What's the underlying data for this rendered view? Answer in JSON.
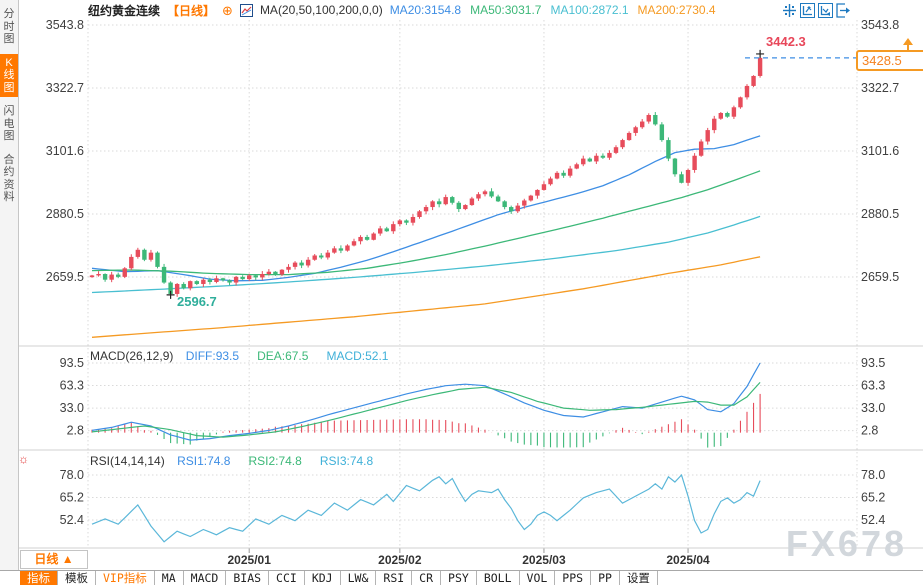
{
  "colors": {
    "accent": "#ff7800",
    "candle_up": "#e74c5b",
    "candle_down": "#3cb878",
    "ma20": "#3e8ee4",
    "ma50": "#3cb878",
    "ma100": "#49bfd1",
    "ma200": "#f59a23",
    "rsi_line": "#5bb7d9",
    "grid": "#dadada",
    "axis_text": "#404040",
    "dashed_price_line": "#3e8ee4",
    "toolbar_icon": "#1f7ac0"
  },
  "icons": {
    "sun_glyph": "☼",
    "add_glyph": "⊕",
    "period_arrow": "▲"
  },
  "sidebar": {
    "items": [
      {
        "label": "分时图",
        "active": false
      },
      {
        "label": "K线图",
        "active": true
      },
      {
        "label": "闪电图",
        "active": false
      },
      {
        "label": "合约资料",
        "active": false
      }
    ]
  },
  "header": {
    "symbol": "纽约黄金连续",
    "period_tag": "【日线】",
    "add_icon_glyph": "⊕",
    "ma_formula": "MA(20,50,100,200,0,0)",
    "ma_values": [
      {
        "label": "MA20:3154.8",
        "color": "#3e8ee4"
      },
      {
        "label": "MA50:3031.7",
        "color": "#3cb878"
      },
      {
        "label": "MA100:2872.1",
        "color": "#49bfd1"
      },
      {
        "label": "MA200:2730.4",
        "color": "#f59a23"
      }
    ]
  },
  "footer": {
    "period_label": "日线 ▲",
    "watermark": "FX678",
    "tabs": [
      {
        "label": "指标",
        "state": "selected"
      },
      {
        "label": "模板",
        "state": "normal"
      },
      {
        "label": "VIP指标",
        "state": "accent"
      },
      {
        "label": "MA",
        "state": "normal"
      },
      {
        "label": "MACD",
        "state": "normal"
      },
      {
        "label": "BIAS",
        "state": "normal"
      },
      {
        "label": "CCI",
        "state": "normal"
      },
      {
        "label": "KDJ",
        "state": "normal"
      },
      {
        "label": "LW&",
        "state": "normal"
      },
      {
        "label": "RSI",
        "state": "normal"
      },
      {
        "label": "CR",
        "state": "normal"
      },
      {
        "label": "PSY",
        "state": "normal"
      },
      {
        "label": "BOLL",
        "state": "normal"
      },
      {
        "label": "VOL",
        "state": "normal"
      },
      {
        "label": "PPS",
        "state": "normal"
      },
      {
        "label": "PP",
        "state": "normal"
      },
      {
        "label": "设置",
        "state": "normal"
      }
    ]
  },
  "chart_data": {
    "type": "candlestick",
    "title": "纽约黄金连续 日线",
    "x_axis": {
      "labels": [
        "2025/01",
        "2025/02",
        "2025/03",
        "2025/04"
      ],
      "tick_indices": [
        24,
        47,
        69,
        91
      ]
    },
    "main": {
      "y_ticks": [
        3543.8,
        3322.7,
        3101.6,
        2880.5,
        2659.5
      ],
      "closes": [
        2665,
        2670,
        2650,
        2668,
        2660,
        2690,
        2730,
        2755,
        2720,
        2745,
        2695,
        2640,
        2600,
        2635,
        2620,
        2645,
        2635,
        2650,
        2642,
        2655,
        2648,
        2640,
        2660,
        2652,
        2665,
        2658,
        2670,
        2678,
        2668,
        2685,
        2695,
        2710,
        2700,
        2720,
        2735,
        2728,
        2745,
        2760,
        2752,
        2770,
        2785,
        2800,
        2790,
        2812,
        2830,
        2820,
        2845,
        2858,
        2850,
        2870,
        2890,
        2905,
        2925,
        2915,
        2940,
        2920,
        2898,
        2912,
        2935,
        2950,
        2960,
        2942,
        2925,
        2905,
        2890,
        2910,
        2928,
        2945,
        2965,
        2985,
        3005,
        3025,
        3015,
        3040,
        3055,
        3075,
        3065,
        3085,
        3078,
        3095,
        3115,
        3140,
        3165,
        3185,
        3205,
        3228,
        3195,
        3140,
        3075,
        3020,
        2990,
        3035,
        3085,
        3135,
        3175,
        3215,
        3235,
        3222,
        3255,
        3290,
        3330,
        3365,
        3428.5
      ],
      "key_points": {
        "high_index": 102,
        "high_value": "3442.3",
        "low_index": 12,
        "low_value": "2596.7",
        "last_price": "3428.5"
      },
      "ma_series": [
        {
          "name": "MA20",
          "color": "#3e8ee4",
          "points": [
            [
              0,
              2690
            ],
            [
              5,
              2678
            ],
            [
              10,
              2682
            ],
            [
              14,
              2668
            ],
            [
              18,
              2652
            ],
            [
              22,
              2646
            ],
            [
              26,
              2648
            ],
            [
              30,
              2658
            ],
            [
              34,
              2672
            ],
            [
              38,
              2694
            ],
            [
              42,
              2718
            ],
            [
              46,
              2748
            ],
            [
              50,
              2780
            ],
            [
              54,
              2812
            ],
            [
              58,
              2845
            ],
            [
              62,
              2878
            ],
            [
              66,
              2904
            ],
            [
              70,
              2928
            ],
            [
              74,
              2952
            ],
            [
              78,
              2980
            ],
            [
              82,
              3018
            ],
            [
              86,
              3065
            ],
            [
              89,
              3096
            ],
            [
              92,
              3108
            ],
            [
              95,
              3110
            ],
            [
              98,
              3124
            ],
            [
              100,
              3140
            ],
            [
              102,
              3154.8
            ]
          ]
        },
        {
          "name": "MA50",
          "color": "#3cb878",
          "points": [
            [
              0,
              2682
            ],
            [
              6,
              2684
            ],
            [
              12,
              2680
            ],
            [
              18,
              2672
            ],
            [
              24,
              2668
            ],
            [
              30,
              2668
            ],
            [
              36,
              2676
            ],
            [
              42,
              2690
            ],
            [
              48,
              2712
            ],
            [
              54,
              2738
            ],
            [
              60,
              2768
            ],
            [
              66,
              2800
            ],
            [
              72,
              2832
            ],
            [
              78,
              2866
            ],
            [
              84,
              2902
            ],
            [
              90,
              2938
            ],
            [
              94,
              2966
            ],
            [
              98,
              2998
            ],
            [
              102,
              3031.7
            ]
          ]
        },
        {
          "name": "MA100",
          "color": "#49bfd1",
          "points": [
            [
              0,
              2605
            ],
            [
              10,
              2616
            ],
            [
              20,
              2628
            ],
            [
              30,
              2642
            ],
            [
              40,
              2658
            ],
            [
              50,
              2677
            ],
            [
              60,
              2698
            ],
            [
              70,
              2723
            ],
            [
              80,
              2752
            ],
            [
              88,
              2782
            ],
            [
              94,
              2814
            ],
            [
              98,
              2842
            ],
            [
              102,
              2872.1
            ]
          ]
        },
        {
          "name": "MA200",
          "color": "#f59a23",
          "points": [
            [
              0,
              2448
            ],
            [
              20,
              2482
            ],
            [
              40,
              2520
            ],
            [
              60,
              2565
            ],
            [
              75,
              2618
            ],
            [
              88,
              2672
            ],
            [
              96,
              2702
            ],
            [
              102,
              2730.4
            ]
          ]
        }
      ]
    },
    "macd": {
      "label": "MACD(26,12,9)",
      "y_ticks": [
        93.5,
        63.3,
        33.0,
        2.8
      ],
      "values": [
        {
          "label": "DIFF:93.5",
          "color": "#3e8ee4"
        },
        {
          "label": "DEA:67.5",
          "color": "#3cb878"
        },
        {
          "label": "MACD:52.1",
          "color": "#3fb0d8"
        }
      ],
      "diff_points": [
        [
          0,
          3
        ],
        [
          3,
          7
        ],
        [
          6,
          14
        ],
        [
          9,
          9
        ],
        [
          12,
          -3
        ],
        [
          15,
          -10
        ],
        [
          18,
          -8
        ],
        [
          21,
          -4
        ],
        [
          24,
          -1
        ],
        [
          27,
          3
        ],
        [
          30,
          9
        ],
        [
          33,
          16
        ],
        [
          36,
          24
        ],
        [
          39,
          31
        ],
        [
          42,
          38
        ],
        [
          45,
          45
        ],
        [
          48,
          52
        ],
        [
          51,
          58
        ],
        [
          54,
          63
        ],
        [
          57,
          65
        ],
        [
          60,
          63
        ],
        [
          63,
          52
        ],
        [
          66,
          40
        ],
        [
          69,
          30
        ],
        [
          72,
          23
        ],
        [
          75,
          21
        ],
        [
          78,
          28
        ],
        [
          81,
          35
        ],
        [
          84,
          33
        ],
        [
          87,
          41
        ],
        [
          90,
          49
        ],
        [
          92,
          44
        ],
        [
          94,
          31
        ],
        [
          96,
          28
        ],
        [
          98,
          39
        ],
        [
          100,
          62
        ],
        [
          102,
          93.5
        ]
      ],
      "dea_points": [
        [
          0,
          1
        ],
        [
          4,
          5
        ],
        [
          8,
          9
        ],
        [
          12,
          4
        ],
        [
          16,
          -4
        ],
        [
          20,
          -6
        ],
        [
          24,
          -3
        ],
        [
          28,
          1
        ],
        [
          32,
          8
        ],
        [
          36,
          16
        ],
        [
          40,
          25
        ],
        [
          44,
          34
        ],
        [
          48,
          43
        ],
        [
          52,
          51
        ],
        [
          56,
          58
        ],
        [
          60,
          61
        ],
        [
          64,
          54
        ],
        [
          68,
          42
        ],
        [
          72,
          33
        ],
        [
          76,
          30
        ],
        [
          80,
          31
        ],
        [
          84,
          34
        ],
        [
          88,
          38
        ],
        [
          92,
          42
        ],
        [
          94,
          41
        ],
        [
          96,
          37
        ],
        [
          98,
          37
        ],
        [
          100,
          48
        ],
        [
          102,
          67.5
        ]
      ]
    },
    "rsi": {
      "label": "RSI(14,14,14)",
      "y_ticks": [
        78.0,
        65.2,
        52.4
      ],
      "values": [
        {
          "label": "RSI1:74.8",
          "color": "#3e8ee4"
        },
        {
          "label": "RSI2:74.8",
          "color": "#3cb878"
        },
        {
          "label": "RSI3:74.8",
          "color": "#3fb0d8"
        }
      ],
      "points": [
        [
          0,
          50
        ],
        [
          2,
          53
        ],
        [
          4,
          50
        ],
        [
          7,
          61
        ],
        [
          9,
          49
        ],
        [
          11,
          40
        ],
        [
          13,
          46
        ],
        [
          15,
          43
        ],
        [
          17,
          47
        ],
        [
          19,
          44
        ],
        [
          21,
          48
        ],
        [
          23,
          46
        ],
        [
          25,
          53
        ],
        [
          27,
          50
        ],
        [
          29,
          55
        ],
        [
          31,
          52
        ],
        [
          33,
          58
        ],
        [
          35,
          55
        ],
        [
          37,
          62
        ],
        [
          39,
          58
        ],
        [
          41,
          64
        ],
        [
          43,
          61
        ],
        [
          45,
          67
        ],
        [
          46,
          63
        ],
        [
          48,
          72
        ],
        [
          50,
          69
        ],
        [
          52,
          75
        ],
        [
          53,
          77
        ],
        [
          54,
          73
        ],
        [
          55,
          76
        ],
        [
          56,
          69
        ],
        [
          57,
          63
        ],
        [
          58,
          67
        ],
        [
          59,
          69
        ],
        [
          61,
          68
        ],
        [
          62,
          70
        ],
        [
          63,
          64
        ],
        [
          64,
          59
        ],
        [
          65,
          52
        ],
        [
          66,
          47
        ],
        [
          67,
          50
        ],
        [
          68,
          55
        ],
        [
          69,
          57
        ],
        [
          70,
          55
        ],
        [
          71,
          52
        ],
        [
          73,
          58
        ],
        [
          75,
          65
        ],
        [
          77,
          68
        ],
        [
          79,
          70
        ],
        [
          80,
          66
        ],
        [
          81,
          62
        ],
        [
          83,
          66
        ],
        [
          85,
          70
        ],
        [
          86,
          73
        ],
        [
          87,
          70
        ],
        [
          88,
          77
        ],
        [
          89,
          74
        ],
        [
          90,
          78
        ],
        [
          91,
          66
        ],
        [
          92,
          52
        ],
        [
          93,
          45
        ],
        [
          94,
          47
        ],
        [
          95,
          56
        ],
        [
          96,
          63
        ],
        [
          97,
          65
        ],
        [
          98,
          62
        ],
        [
          99,
          64
        ],
        [
          100,
          68
        ],
        [
          101,
          66
        ],
        [
          102,
          74.8
        ]
      ]
    }
  }
}
